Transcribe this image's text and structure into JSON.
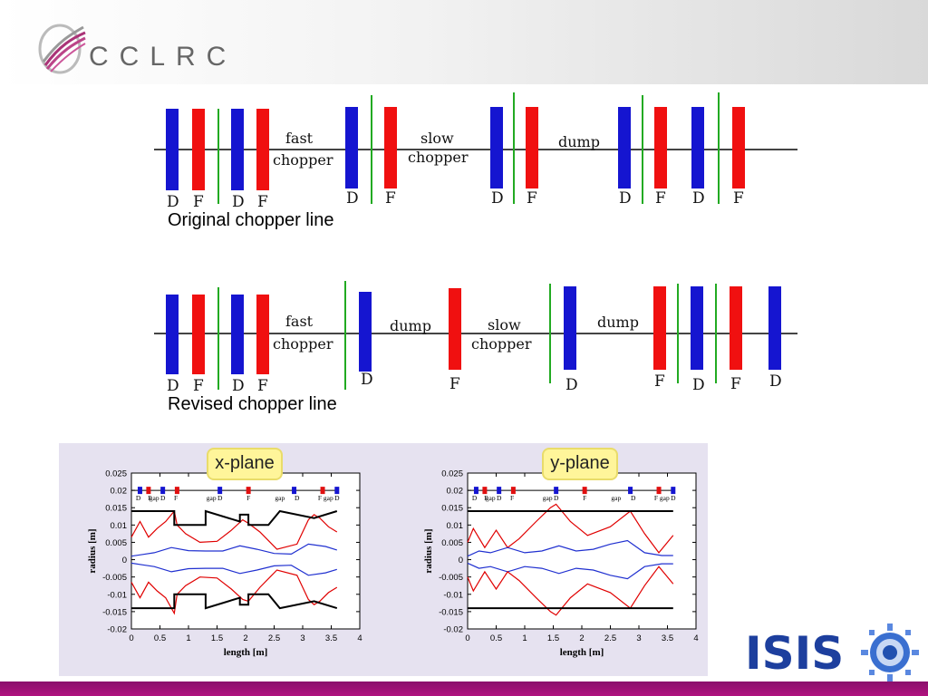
{
  "header": {
    "logo_text": "CCLRC"
  },
  "original_line": {
    "caption": "Original chopper line",
    "labels": {
      "fast": "fast",
      "chopper": "chopper",
      "slow": "slow",
      "dump": "dump"
    },
    "magnets": [
      "D",
      "F",
      "D",
      "F",
      "D",
      "F",
      "D",
      "F",
      "D",
      "F",
      "D",
      "F"
    ]
  },
  "revised_line": {
    "caption": "Revised chopper line",
    "labels": {
      "fast": "fast",
      "chopper": "chopper",
      "slow": "slow",
      "dump1": "dump",
      "dump2": "dump"
    },
    "magnets": [
      "D",
      "F",
      "D",
      "F",
      "D",
      "F",
      "D",
      "F",
      "D",
      "F",
      "D"
    ]
  },
  "plots": {
    "x_plane_title": "x-plane",
    "y_plane_title": "y-plane",
    "x_axis_label": "length [m]",
    "y_axis_label": "radius [m]",
    "y_ticks": [
      "0.025",
      "0.02",
      "0.015",
      "0.01",
      "0.005",
      "0",
      "-0.005",
      "-0.01",
      "-0.015",
      "-0.02"
    ],
    "x_ticks": [
      "0",
      "0.5",
      "1",
      "1.5",
      "2",
      "2.5",
      "3",
      "3.5",
      "4"
    ],
    "lattice_labels_x": [
      "D",
      "F",
      "gap",
      "D",
      "F",
      "gap",
      "D",
      "F",
      "gap",
      "D",
      "F",
      "gap",
      "D"
    ],
    "lattice_labels_y": [
      "D",
      "F",
      "gap",
      "D",
      "F",
      "gap",
      "D",
      "F",
      "gap",
      "D",
      "F",
      "gap",
      "D"
    ]
  },
  "chart_data": [
    {
      "type": "line",
      "title": "x-plane",
      "xlabel": "length [m]",
      "ylabel": "radius [m]",
      "xlim": [
        0,
        4
      ],
      "ylim": [
        -0.02,
        0.025
      ],
      "series": [
        {
          "color": "#e00000",
          "x": [
            0,
            0.15,
            0.3,
            0.45,
            0.6,
            0.75,
            0.8,
            0.95,
            1.2,
            1.5,
            1.75,
            1.95,
            2.05,
            2.25,
            2.55,
            2.9,
            3.1,
            3.2,
            3.3,
            3.45,
            3.6
          ],
          "y": [
            0.0065,
            0.011,
            0.0065,
            0.009,
            0.011,
            0.014,
            0.01,
            0.0075,
            0.005,
            0.0053,
            0.0085,
            0.0115,
            0.0105,
            0.008,
            0.003,
            0.0045,
            0.0115,
            0.013,
            0.012,
            0.0095,
            0.008
          ]
        },
        {
          "color": "#2030d0",
          "x": [
            0,
            0.2,
            0.4,
            0.7,
            1.0,
            1.3,
            1.6,
            1.9,
            2.2,
            2.5,
            2.8,
            3.1,
            3.4,
            3.6
          ],
          "y": [
            0.001,
            0.0015,
            0.002,
            0.0035,
            0.0026,
            0.0025,
            0.0025,
            0.004,
            0.003,
            0.0018,
            0.0016,
            0.0045,
            0.0038,
            0.0028
          ]
        },
        {
          "color": "#2030d0",
          "x": [
            0,
            0.2,
            0.4,
            0.7,
            1.0,
            1.3,
            1.6,
            1.9,
            2.2,
            2.5,
            2.8,
            3.1,
            3.4,
            3.6
          ],
          "y": [
            -0.001,
            -0.0015,
            -0.002,
            -0.0035,
            -0.0026,
            -0.0025,
            -0.0025,
            -0.004,
            -0.003,
            -0.0018,
            -0.0016,
            -0.0045,
            -0.0038,
            -0.0028
          ]
        },
        {
          "color": "#e00000",
          "x": [
            0,
            0.15,
            0.3,
            0.45,
            0.6,
            0.75,
            0.8,
            0.95,
            1.2,
            1.5,
            1.75,
            1.95,
            2.05,
            2.25,
            2.55,
            2.9,
            3.1,
            3.2,
            3.3,
            3.45,
            3.6
          ],
          "y": [
            -0.0065,
            -0.011,
            -0.0065,
            -0.009,
            -0.011,
            -0.0155,
            -0.01,
            -0.0075,
            -0.005,
            -0.0053,
            -0.0085,
            -0.0115,
            -0.012,
            -0.008,
            -0.003,
            -0.0045,
            -0.0115,
            -0.013,
            -0.012,
            -0.0095,
            -0.008
          ]
        },
        {
          "color": "#000000",
          "x": [
            0,
            0.75,
            0.75,
            0.8,
            1.3,
            1.3,
            1.9,
            1.9,
            2.05,
            2.05,
            2.4,
            2.6,
            2.6,
            3.2,
            3.6
          ],
          "y": [
            0.014,
            0.014,
            0.01,
            0.01,
            0.01,
            0.014,
            0.011,
            0.013,
            0.013,
            0.01,
            0.01,
            0.014,
            0.014,
            0.012,
            0.014
          ]
        },
        {
          "color": "#000000",
          "x": [
            0,
            0.75,
            0.75,
            0.8,
            1.3,
            1.3,
            1.9,
            1.9,
            2.05,
            2.05,
            2.4,
            2.6,
            2.6,
            3.2,
            3.6
          ],
          "y": [
            -0.014,
            -0.014,
            -0.01,
            -0.01,
            -0.01,
            -0.014,
            -0.011,
            -0.013,
            -0.013,
            -0.01,
            -0.01,
            -0.014,
            -0.014,
            -0.012,
            -0.014
          ]
        }
      ]
    },
    {
      "type": "line",
      "title": "y-plane",
      "xlabel": "length [m]",
      "ylabel": "radius [m]",
      "xlim": [
        0,
        4
      ],
      "ylim": [
        -0.02,
        0.025
      ],
      "series": [
        {
          "color": "#e00000",
          "x": [
            0,
            0.1,
            0.3,
            0.5,
            0.7,
            0.9,
            1.2,
            1.45,
            1.55,
            1.8,
            2.1,
            2.5,
            2.85,
            3.1,
            3.35,
            3.6
          ],
          "y": [
            0.005,
            0.009,
            0.0035,
            0.0085,
            0.0035,
            0.006,
            0.011,
            0.015,
            0.016,
            0.011,
            0.007,
            0.0095,
            0.014,
            0.0075,
            0.002,
            0.007
          ]
        },
        {
          "color": "#2030d0",
          "x": [
            0,
            0.2,
            0.4,
            0.7,
            1.0,
            1.3,
            1.6,
            1.9,
            2.2,
            2.5,
            2.8,
            3.1,
            3.4,
            3.6
          ],
          "y": [
            0.001,
            0.0025,
            0.002,
            0.0035,
            0.002,
            0.0025,
            0.004,
            0.0025,
            0.003,
            0.0045,
            0.0055,
            0.002,
            0.0012,
            0.0012
          ]
        },
        {
          "color": "#2030d0",
          "x": [
            0,
            0.2,
            0.4,
            0.7,
            1.0,
            1.3,
            1.6,
            1.9,
            2.2,
            2.5,
            2.8,
            3.1,
            3.4,
            3.6
          ],
          "y": [
            -0.001,
            -0.0025,
            -0.002,
            -0.0035,
            -0.002,
            -0.0025,
            -0.004,
            -0.0025,
            -0.003,
            -0.0045,
            -0.0055,
            -0.002,
            -0.0012,
            -0.0012
          ]
        },
        {
          "color": "#e00000",
          "x": [
            0,
            0.1,
            0.3,
            0.5,
            0.7,
            0.9,
            1.2,
            1.45,
            1.55,
            1.8,
            2.1,
            2.5,
            2.85,
            3.1,
            3.35,
            3.6
          ],
          "y": [
            -0.005,
            -0.009,
            -0.0035,
            -0.0085,
            -0.0035,
            -0.006,
            -0.011,
            -0.015,
            -0.016,
            -0.011,
            -0.007,
            -0.0095,
            -0.014,
            -0.0075,
            -0.002,
            -0.007
          ]
        },
        {
          "color": "#000000",
          "x": [
            0,
            3.6
          ],
          "y": [
            0.014,
            0.014
          ]
        },
        {
          "color": "#000000",
          "x": [
            0,
            3.6
          ],
          "y": [
            -0.014,
            -0.014
          ]
        }
      ]
    }
  ]
}
